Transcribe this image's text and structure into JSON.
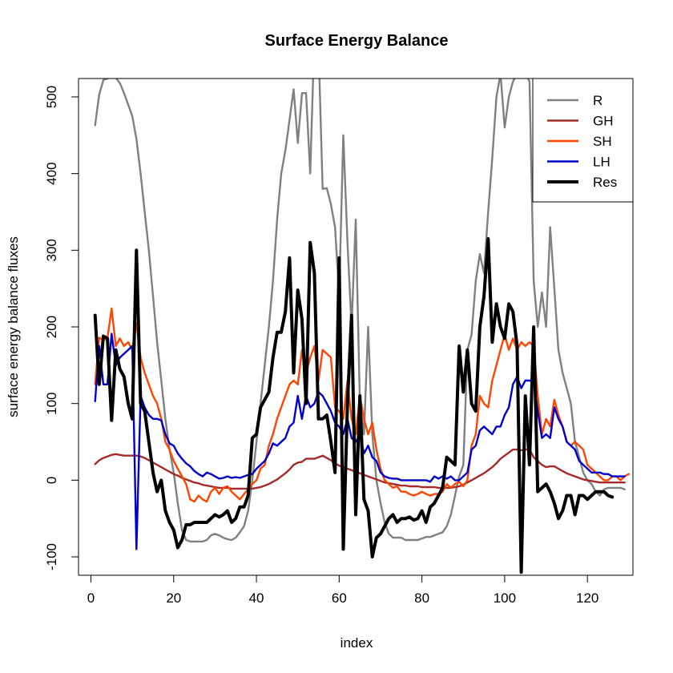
{
  "chart_data": {
    "type": "line",
    "title": "Surface Energy Balance",
    "xlabel": "index",
    "ylabel": "surface energy balance fluxes",
    "xlim": [
      -3,
      131
    ],
    "ylim": [
      -124,
      524
    ],
    "x_ticks": [
      0,
      20,
      40,
      60,
      80,
      100,
      120
    ],
    "y_ticks": [
      -100,
      0,
      100,
      200,
      300,
      400,
      500
    ],
    "grid": false,
    "legend_position": "top-right",
    "x_start": 1,
    "series": [
      {
        "name": "R",
        "color": "#808080",
        "width": 2.4,
        "values": [
          463,
          503,
          522,
          524,
          526,
          525,
          518,
          505,
          490,
          475,
          445,
          400,
          350,
          300,
          240,
          180,
          130,
          80,
          40,
          10,
          -30,
          -65,
          -78,
          -80,
          -80,
          -80,
          -80,
          -78,
          -72,
          -70,
          -72,
          -75,
          -77,
          -78,
          -75,
          -68,
          -60,
          -40,
          0,
          50,
          100,
          150,
          200,
          260,
          340,
          400,
          430,
          470,
          510,
          440,
          505,
          505,
          400,
          580,
          570,
          380,
          381,
          360,
          330,
          240,
          450,
          310,
          200,
          340,
          100,
          60,
          200,
          60,
          0,
          -30,
          -55,
          -70,
          -75,
          -75,
          -75,
          -78,
          -78,
          -78,
          -78,
          -76,
          -74,
          -74,
          -72,
          -70,
          -68,
          -60,
          -45,
          -20,
          5,
          20,
          170,
          190,
          260,
          295,
          270,
          350,
          420,
          500,
          530,
          460,
          500,
          520,
          530,
          525,
          530,
          520,
          260,
          200,
          245,
          200,
          330,
          250,
          170,
          140,
          120,
          100,
          50,
          30,
          10,
          0,
          -5,
          -15,
          -20,
          -12,
          -10,
          -10,
          -10,
          -10,
          -12
        ]
      },
      {
        "name": "GH",
        "color": "#a52a2a",
        "width": 2.4,
        "values": [
          21,
          26,
          29,
          31,
          33,
          34,
          33,
          32,
          32,
          32,
          32,
          31,
          29,
          26,
          23,
          20,
          17,
          14,
          11,
          8,
          6,
          3,
          1,
          -1,
          -3,
          -4,
          -6,
          -7,
          -8,
          -9,
          -10,
          -10,
          -10,
          -11,
          -11,
          -11,
          -11,
          -11,
          -11,
          -10,
          -9,
          -7,
          -5,
          -2,
          1,
          5,
          9,
          14,
          20,
          23,
          24,
          28,
          28,
          28,
          30,
          32,
          29,
          26,
          22,
          19,
          17,
          15,
          13,
          11,
          9,
          7,
          5,
          3,
          1,
          -1,
          -3,
          -4,
          -5,
          -6,
          -7,
          -7,
          -8,
          -8,
          -8,
          -9,
          -9,
          -9,
          -9,
          -10,
          -10,
          -10,
          -10,
          -9,
          -8,
          -6,
          -3,
          0,
          3,
          6,
          9,
          13,
          17,
          22,
          28,
          32,
          36,
          40,
          40,
          39,
          40,
          40,
          30,
          25,
          20,
          17,
          18,
          18,
          15,
          12,
          9,
          7,
          5,
          3,
          1,
          0,
          -1,
          -2,
          -3,
          -3,
          -3,
          -3,
          -3,
          -3,
          -3
        ]
      },
      {
        "name": "SH",
        "color": "#ff4500",
        "width": 2.4,
        "values": [
          125,
          186,
          183,
          185,
          224,
          175,
          185,
          175,
          180,
          170,
          205,
          160,
          140,
          125,
          110,
          100,
          80,
          50,
          40,
          25,
          15,
          5,
          -5,
          -25,
          -28,
          -20,
          -25,
          -28,
          -15,
          -10,
          -18,
          -10,
          -8,
          -15,
          -20,
          -25,
          -18,
          -12,
          -5,
          0,
          15,
          20,
          45,
          60,
          80,
          95,
          110,
          125,
          130,
          125,
          170,
          140,
          160,
          175,
          130,
          170,
          165,
          160,
          95,
          90,
          80,
          130,
          80,
          60,
          110,
          80,
          60,
          75,
          40,
          15,
          0,
          -5,
          -10,
          -8,
          -15,
          -15,
          -18,
          -20,
          -18,
          -15,
          -18,
          -20,
          -18,
          -18,
          -15,
          -5,
          -10,
          -5,
          -2,
          -8,
          0,
          45,
          60,
          110,
          100,
          95,
          130,
          150,
          170,
          190,
          170,
          185,
          170,
          180,
          175,
          180,
          175,
          110,
          60,
          80,
          70,
          105,
          85,
          70,
          50,
          45,
          50,
          45,
          40,
          20,
          15,
          10,
          5,
          0,
          0,
          5,
          5,
          0,
          5,
          8
        ]
      },
      {
        "name": "LH",
        "color": "#0000cd",
        "width": 2.4,
        "values": [
          103,
          175,
          125,
          125,
          191,
          150,
          160,
          165,
          170,
          175,
          -90,
          110,
          95,
          85,
          80,
          80,
          78,
          60,
          48,
          45,
          35,
          28,
          22,
          18,
          12,
          8,
          5,
          10,
          8,
          5,
          2,
          3,
          5,
          3,
          4,
          3,
          5,
          7,
          8,
          15,
          20,
          25,
          35,
          48,
          45,
          50,
          55,
          70,
          75,
          110,
          80,
          110,
          95,
          100,
          115,
          110,
          100,
          90,
          75,
          70,
          60,
          80,
          55,
          50,
          60,
          35,
          45,
          30,
          25,
          10,
          5,
          3,
          2,
          2,
          0,
          0,
          0,
          0,
          0,
          0,
          0,
          -2,
          5,
          2,
          5,
          2,
          5,
          0,
          0,
          5,
          10,
          40,
          45,
          65,
          70,
          65,
          60,
          70,
          70,
          85,
          95,
          125,
          135,
          120,
          130,
          130,
          130,
          90,
          55,
          60,
          55,
          95,
          80,
          70,
          50,
          45,
          40,
          25,
          20,
          15,
          10,
          10,
          10,
          8,
          8,
          5,
          5,
          5,
          5
        ]
      },
      {
        "name": "Res",
        "color": "#000000",
        "width": 4,
        "values": [
          215,
          125,
          188,
          185,
          78,
          170,
          145,
          135,
          100,
          80,
          300,
          100,
          90,
          50,
          10,
          -15,
          0,
          -40,
          -55,
          -65,
          -88,
          -78,
          -58,
          -58,
          -55,
          -55,
          -55,
          -55,
          -50,
          -45,
          -48,
          -45,
          -40,
          -55,
          -50,
          -35,
          -35,
          -20,
          55,
          60,
          95,
          105,
          115,
          160,
          193,
          193,
          220,
          290,
          140,
          248,
          210,
          100,
          310,
          270,
          80,
          80,
          85,
          50,
          10,
          290,
          -90,
          100,
          215,
          -45,
          110,
          -25,
          -40,
          -100,
          -75,
          -70,
          -60,
          -50,
          -45,
          -55,
          -50,
          -50,
          -48,
          -52,
          -50,
          -40,
          -55,
          -35,
          -30,
          -20,
          -10,
          30,
          25,
          20,
          175,
          115,
          170,
          100,
          90,
          200,
          240,
          315,
          180,
          230,
          200,
          185,
          230,
          220,
          175,
          -120,
          110,
          20,
          200,
          -15,
          -10,
          -5,
          -15,
          -30,
          -50,
          -40,
          -20,
          -20,
          -45,
          -20,
          -20,
          -25,
          -20,
          -15,
          -15,
          -15,
          -20,
          -22
        ]
      }
    ]
  }
}
